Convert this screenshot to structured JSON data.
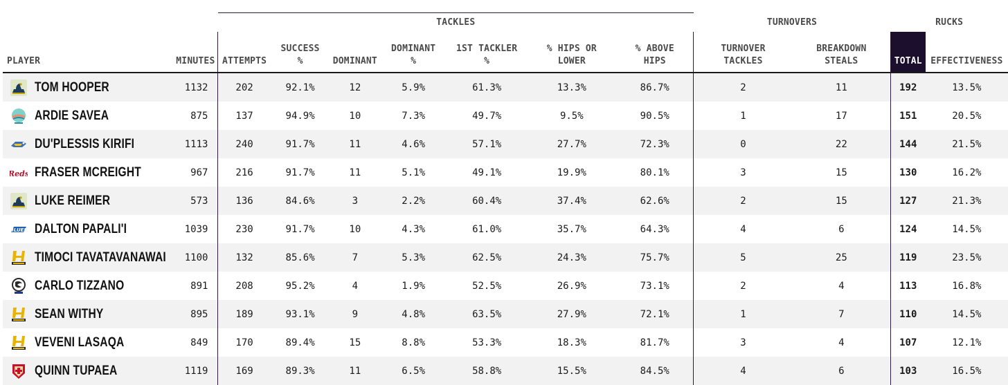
{
  "groups": {
    "tackles": "TACKLES",
    "turnovers": "TURNOVERS",
    "rucks": "RUCKS"
  },
  "columns": {
    "player": "PLAYER",
    "minutes": "MINUTES",
    "attempts": "ATTEMPTS",
    "success_1": "SUCCESS",
    "success_2": "%",
    "dominant": "DOMINANT",
    "dominant_pct_1": "DOMINANT",
    "dominant_pct_2": "%",
    "first_tackler_1": "1ST TACKLER",
    "first_tackler_2": "%",
    "hips_1": "% HIPS OR",
    "hips_2": "LOWER",
    "above_1": "% ABOVE",
    "above_2": "HIPS",
    "turnover_tackles_1": "TURNOVER",
    "turnover_tackles_2": "TACKLES",
    "breakdown_1": "BREAKDOWN",
    "breakdown_2": "STEALS",
    "total": "TOTAL",
    "effectiveness": "EFFECTIVENESS"
  },
  "rows": [
    {
      "logo": "brumbies-logo",
      "name": "TOM HOOPER",
      "minutes": "1132",
      "attempts": "202",
      "success": "92.1%",
      "dominant": "12",
      "dominant_pct": "5.9%",
      "first_tackler": "61.3%",
      "hips": "13.3%",
      "above": "86.7%",
      "turnover_tackles": "2",
      "breakdown_steals": "11",
      "total": "192",
      "effectiveness": "13.5%"
    },
    {
      "logo": "moana-logo",
      "name": "ARDIE SAVEA",
      "minutes": "875",
      "attempts": "137",
      "success": "94.9%",
      "dominant": "10",
      "dominant_pct": "7.3%",
      "first_tackler": "49.7%",
      "hips": "9.5%",
      "above": "90.5%",
      "turnover_tackles": "1",
      "breakdown_steals": "17",
      "total": "151",
      "effectiveness": "20.5%"
    },
    {
      "logo": "rebels-logo",
      "name": "DU'PLESSIS KIRIFI",
      "minutes": "1113",
      "attempts": "240",
      "success": "91.7%",
      "dominant": "11",
      "dominant_pct": "4.6%",
      "first_tackler": "57.1%",
      "hips": "27.7%",
      "above": "72.3%",
      "turnover_tackles": "0",
      "breakdown_steals": "22",
      "total": "144",
      "effectiveness": "21.5%"
    },
    {
      "logo": "reds-logo",
      "name": "FRASER MCREIGHT",
      "minutes": "967",
      "attempts": "216",
      "success": "91.7%",
      "dominant": "11",
      "dominant_pct": "5.1%",
      "first_tackler": "49.1%",
      "hips": "19.9%",
      "above": "80.1%",
      "turnover_tackles": "3",
      "breakdown_steals": "15",
      "total": "130",
      "effectiveness": "16.2%"
    },
    {
      "logo": "brumbies-logo",
      "name": "LUKE REIMER",
      "minutes": "573",
      "attempts": "136",
      "success": "84.6%",
      "dominant": "3",
      "dominant_pct": "2.2%",
      "first_tackler": "60.4%",
      "hips": "37.4%",
      "above": "62.6%",
      "turnover_tackles": "2",
      "breakdown_steals": "15",
      "total": "127",
      "effectiveness": "21.3%"
    },
    {
      "logo": "blues-logo",
      "name": "DALTON PAPALI'I",
      "minutes": "1039",
      "attempts": "230",
      "success": "91.7%",
      "dominant": "10",
      "dominant_pct": "4.3%",
      "first_tackler": "61.0%",
      "hips": "35.7%",
      "above": "64.3%",
      "turnover_tackles": "4",
      "breakdown_steals": "6",
      "total": "124",
      "effectiveness": "14.5%"
    },
    {
      "logo": "hurricanes-logo",
      "name": "TIMOCI TAVATAVANAWAI",
      "minutes": "1100",
      "attempts": "132",
      "success": "85.6%",
      "dominant": "7",
      "dominant_pct": "5.3%",
      "first_tackler": "62.5%",
      "hips": "24.3%",
      "above": "75.7%",
      "turnover_tackles": "5",
      "breakdown_steals": "25",
      "total": "119",
      "effectiveness": "23.5%"
    },
    {
      "logo": "force-logo",
      "name": "CARLO TIZZANO",
      "minutes": "891",
      "attempts": "208",
      "success": "95.2%",
      "dominant": "4",
      "dominant_pct": "1.9%",
      "first_tackler": "52.5%",
      "hips": "26.9%",
      "above": "73.1%",
      "turnover_tackles": "2",
      "breakdown_steals": "4",
      "total": "113",
      "effectiveness": "16.8%"
    },
    {
      "logo": "hurricanes-logo",
      "name": "SEAN WITHY",
      "minutes": "895",
      "attempts": "189",
      "success": "93.1%",
      "dominant": "9",
      "dominant_pct": "4.8%",
      "first_tackler": "63.5%",
      "hips": "27.9%",
      "above": "72.1%",
      "turnover_tackles": "1",
      "breakdown_steals": "7",
      "total": "110",
      "effectiveness": "14.5%"
    },
    {
      "logo": "hurricanes-logo",
      "name": "VEVENI LASAQA",
      "minutes": "849",
      "attempts": "170",
      "success": "89.4%",
      "dominant": "15",
      "dominant_pct": "8.8%",
      "first_tackler": "53.3%",
      "hips": "18.3%",
      "above": "81.7%",
      "turnover_tackles": "3",
      "breakdown_steals": "4",
      "total": "107",
      "effectiveness": "12.1%"
    },
    {
      "logo": "chiefs-logo",
      "name": "QUINN TUPAEA",
      "minutes": "1119",
      "attempts": "169",
      "success": "89.3%",
      "dominant": "11",
      "dominant_pct": "6.5%",
      "first_tackler": "58.8%",
      "hips": "15.5%",
      "above": "84.5%",
      "turnover_tackles": "4",
      "breakdown_steals": "6",
      "total": "103",
      "effectiveness": "16.5%"
    }
  ]
}
